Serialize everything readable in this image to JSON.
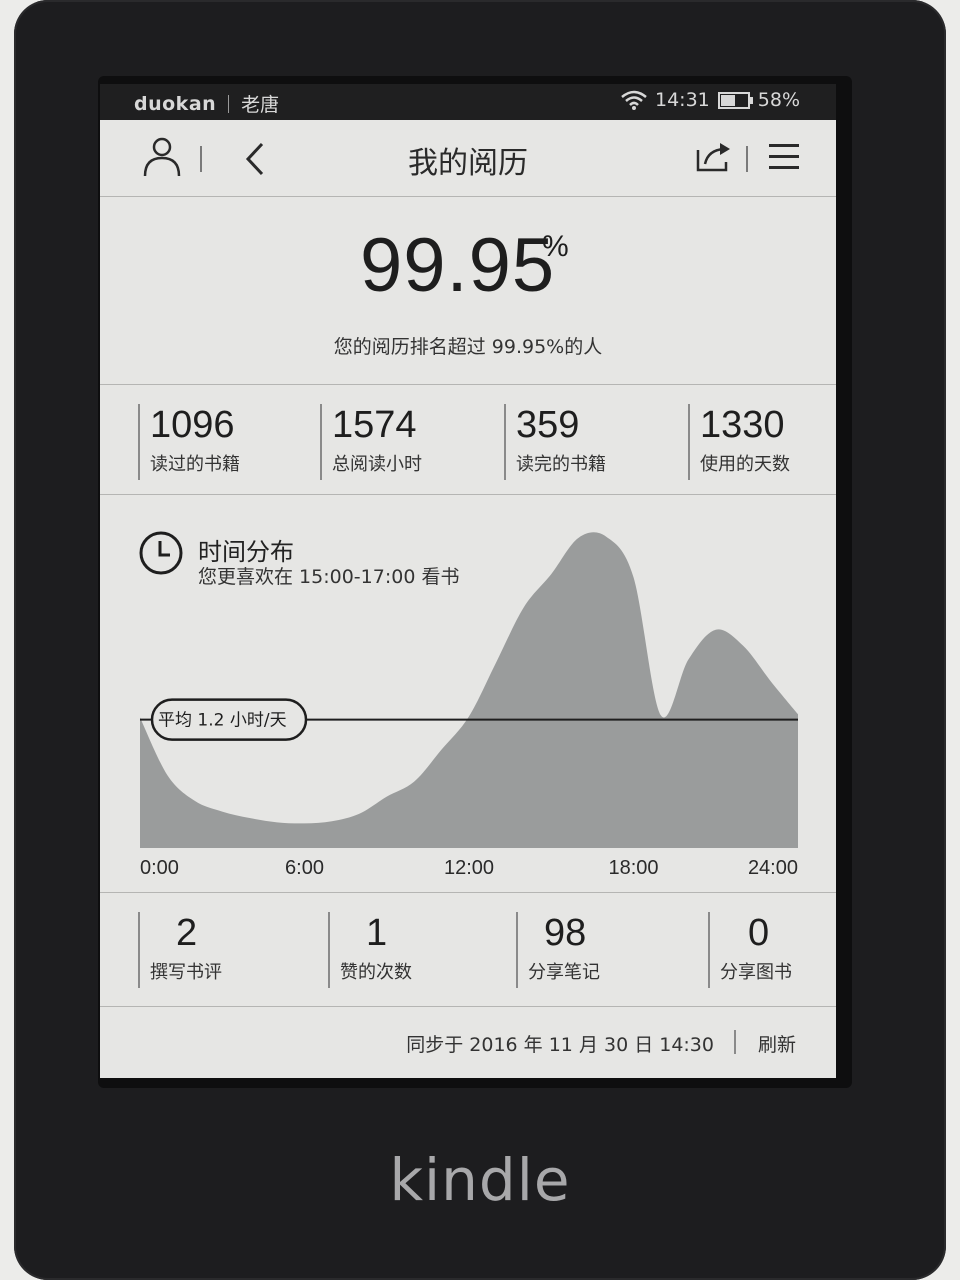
{
  "status_bar": {
    "brand": "duokan",
    "user": "老唐",
    "time": "14:31",
    "battery": "58%",
    "battery_level": 0.58
  },
  "toolbar": {
    "title": "我的阅历"
  },
  "ranking": {
    "percent": "99.95",
    "percent_sign": "%",
    "description": "您的阅历排名超过 99.95%的人"
  },
  "stats_top": [
    {
      "value": "1096",
      "label": "读过的书籍"
    },
    {
      "value": "1574",
      "label": "总阅读小时"
    },
    {
      "value": "359",
      "label": "读完的书籍"
    },
    {
      "value": "1330",
      "label": "使用的天数"
    }
  ],
  "time_distribution": {
    "title": "时间分布",
    "subtitle": "您更喜欢在 15:00-17:00 看书",
    "average_label": "平均 1.2 小时/天"
  },
  "chart_data": {
    "type": "area",
    "x_ticks": [
      "0:00",
      "6:00",
      "12:00",
      "18:00",
      "24:00"
    ],
    "x": [
      0,
      1,
      2,
      3,
      4,
      5,
      6,
      7,
      8,
      9,
      10,
      11,
      12,
      13,
      14,
      15,
      16,
      17,
      18,
      19,
      20,
      21,
      22,
      23,
      24
    ],
    "values": [
      1.22,
      0.68,
      0.44,
      0.34,
      0.28,
      0.24,
      0.23,
      0.25,
      0.32,
      0.48,
      0.62,
      0.92,
      1.23,
      1.74,
      2.25,
      2.56,
      2.9,
      2.91,
      2.53,
      1.24,
      1.76,
      2.04,
      1.89,
      1.56,
      1.25
    ],
    "average": 1.2,
    "xlim": [
      0,
      24
    ],
    "ylim": [
      0,
      3.0
    ],
    "grid": false
  },
  "stats_bottom": [
    {
      "value": "2",
      "label": "撰写书评"
    },
    {
      "value": "1",
      "label": "赞的次数"
    },
    {
      "value": "98",
      "label": "分享笔记"
    },
    {
      "value": "0",
      "label": "分享图书"
    }
  ],
  "footer": {
    "sync_text": "同步于 2016 年 11 月 30 日 14:30",
    "refresh_label": "刷新"
  },
  "device": {
    "logo": "kindle"
  }
}
